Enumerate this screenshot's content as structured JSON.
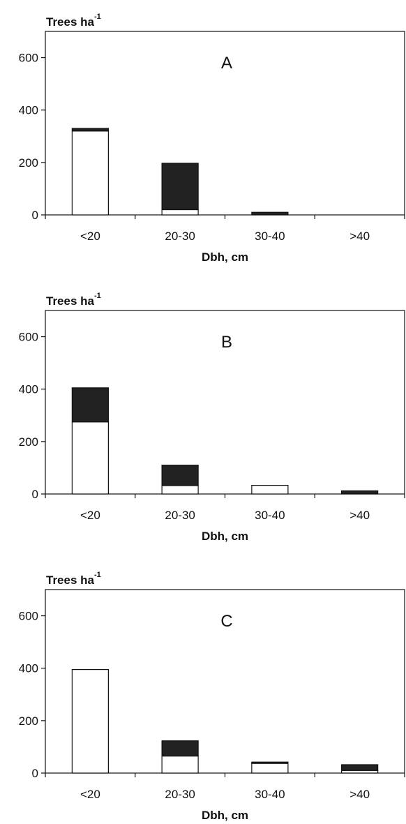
{
  "chart_data": [
    {
      "type": "bar",
      "stacked": true,
      "panel_label": "A",
      "ylabel": "Trees ha",
      "ylabel_sup": "-1",
      "xlabel": "Dbh, cm",
      "categories": [
        "<20",
        "20-30",
        "30-40",
        ">40"
      ],
      "yticks": [
        "0",
        "200",
        "400",
        "600"
      ],
      "ylim": [
        0,
        700
      ],
      "series": [
        {
          "values": [
            320,
            20,
            0,
            0
          ]
        },
        {
          "values": [
            10,
            177,
            10,
            0
          ]
        }
      ]
    },
    {
      "type": "bar",
      "stacked": true,
      "panel_label": "B",
      "ylabel": "Trees ha",
      "ylabel_sup": "-1",
      "xlabel": "Dbh, cm",
      "categories": [
        "<20",
        "20-30",
        "30-40",
        ">40"
      ],
      "yticks": [
        "0",
        "200",
        "400",
        "600"
      ],
      "ylim": [
        0,
        700
      ],
      "series": [
        {
          "values": [
            275,
            32,
            33,
            0
          ]
        },
        {
          "values": [
            130,
            78,
            0,
            12
          ]
        }
      ]
    },
    {
      "type": "bar",
      "stacked": true,
      "panel_label": "C",
      "ylabel": "Trees ha",
      "ylabel_sup": "-1",
      "xlabel": "Dbh, cm",
      "categories": [
        "<20",
        "20-30",
        "30-40",
        ">40"
      ],
      "yticks": [
        "0",
        "200",
        "400",
        "600"
      ],
      "ylim": [
        0,
        700
      ],
      "series": [
        {
          "values": [
            395,
            65,
            37,
            10
          ]
        },
        {
          "values": [
            0,
            58,
            5,
            22
          ]
        }
      ]
    }
  ],
  "colors": {
    "lower_segment": "#ffffff",
    "upper_segment": "#222222",
    "axis": "#111111"
  }
}
